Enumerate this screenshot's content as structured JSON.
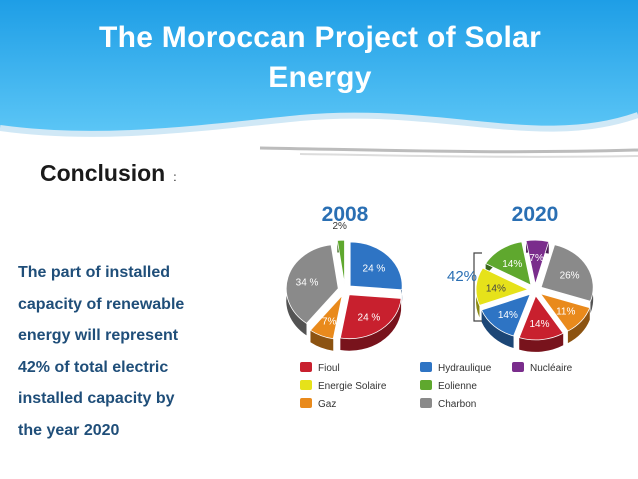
{
  "header": {
    "title_line1": "The Moroccan Project of Solar",
    "title_line2": "Energy"
  },
  "conclusion": {
    "label": "Conclusion",
    "colon": ":"
  },
  "body_text": [
    "The part of installed",
    "capacity of renewable",
    "energy will represent",
    "42% of total electric",
    "installed capacity by",
    "the year 2020"
  ],
  "chart_data": {
    "type": "pie",
    "title": "",
    "charts": [
      {
        "year": "2008",
        "slices": [
          {
            "category": "Hydraulique",
            "value": 24,
            "label": "24 %"
          },
          {
            "category": "Fioul",
            "value": 24,
            "label": "24 %"
          },
          {
            "category": "Gaz",
            "value": 7,
            "label": "7%"
          },
          {
            "category": "Charbon",
            "value": 34,
            "label": "34 %"
          },
          {
            "category": "Eolienne",
            "value": 2,
            "label": "2%"
          }
        ]
      },
      {
        "year": "2020",
        "slices": [
          {
            "category": "Charbon",
            "value": 26,
            "label": "26%"
          },
          {
            "category": "Gaz",
            "value": 11,
            "label": "11%"
          },
          {
            "category": "Fioul",
            "value": 14,
            "label": "14%"
          },
          {
            "category": "Hydraulique",
            "value": 14,
            "label": "14%"
          },
          {
            "category": "Energie Solaire",
            "value": 14,
            "label": "14%"
          },
          {
            "category": "Eolienne",
            "value": 14,
            "label": "14%"
          },
          {
            "category": "Nucléaire",
            "value": 7,
            "label": "7%"
          }
        ]
      }
    ],
    "annotation": "42%",
    "legend": [
      {
        "name": "Fioul",
        "color": "#c8202e"
      },
      {
        "name": "Hydraulique",
        "color": "#2e74c4"
      },
      {
        "name": "Nucléaire",
        "color": "#7a2d8c"
      },
      {
        "name": "Energie Solaire",
        "color": "#e6e21a"
      },
      {
        "name": "Eolienne",
        "color": "#5fa82e"
      },
      {
        "name": "Gaz",
        "color": "#e98a1c"
      },
      {
        "name": "Charbon",
        "color": "#8a8a8a"
      }
    ]
  }
}
